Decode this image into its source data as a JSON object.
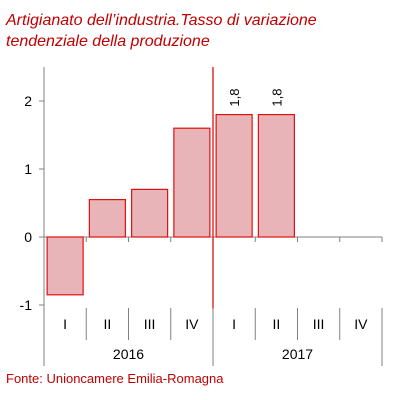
{
  "chart_data": {
    "type": "bar",
    "title_line1": "Artigianato dell’industria.Tasso di variazione",
    "title_line2": "tendenziale della produzione",
    "source": "Fonte: Unioncamere Emilia-Romagna",
    "categories": [
      "I",
      "II",
      "III",
      "IV",
      "I",
      "II",
      "III",
      "IV"
    ],
    "groups": [
      {
        "label": "2016",
        "start": 0,
        "count": 4
      },
      {
        "label": "2017",
        "start": 4,
        "count": 4
      }
    ],
    "values": [
      -0.85,
      0.55,
      0.7,
      1.6,
      1.8,
      1.8,
      null,
      null
    ],
    "data_labels": [
      "",
      "",
      "",
      "",
      "1,8",
      "1,8",
      "",
      ""
    ],
    "ylim": [
      -1,
      2.5
    ],
    "yticks": [
      -1,
      0,
      1,
      2
    ],
    "ytick_labels": [
      "-1",
      "0",
      "1",
      "2"
    ],
    "divider_after_index": 3,
    "colors": {
      "bar_fill": "#e8b4b8",
      "bar_stroke": "#e01010",
      "text_red": "#c00000",
      "axis": "#808080"
    }
  }
}
